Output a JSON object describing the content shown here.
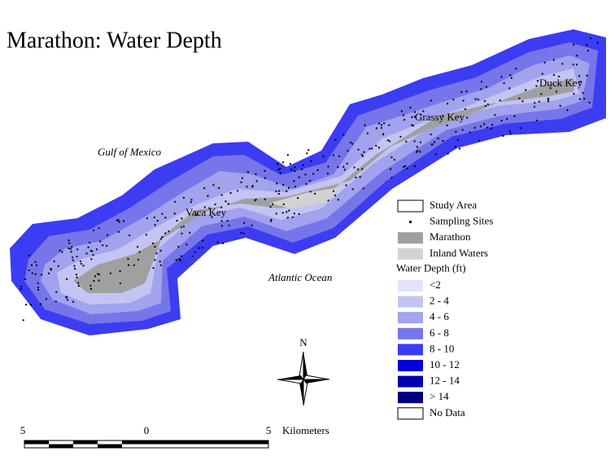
{
  "title": "Marathon:  Water Depth",
  "places": [
    {
      "label": "Gulf of Mexico",
      "italic": true
    },
    {
      "label": "Vaca Key",
      "italic": false
    },
    {
      "label": "Grassy Key",
      "italic": false
    },
    {
      "label": "Duck Key",
      "italic": false
    },
    {
      "label": "Atlantic Ocean",
      "italic": true
    }
  ],
  "legend": {
    "features": [
      {
        "label": "Study Area",
        "color": "#ffffff"
      },
      {
        "label": "Sampling Sites",
        "color": "#000000",
        "marker": "dot"
      },
      {
        "label": "Marathon",
        "color": "#a0a0a0"
      },
      {
        "label": "Inland Waters",
        "color": "#d2d2d2"
      }
    ],
    "depth_title": "Water Depth (ft)",
    "depth_classes": [
      {
        "label": "<2",
        "color": "#e2e2fa"
      },
      {
        "label": "2 - 4",
        "color": "#c4c4f4"
      },
      {
        "label": "4 - 6",
        "color": "#a2a2ee"
      },
      {
        "label": "6 - 8",
        "color": "#7676ea"
      },
      {
        "label": "8 - 10",
        "color": "#3c3cf2"
      },
      {
        "label": "10 - 12",
        "color": "#0000de"
      },
      {
        "label": "12 - 14",
        "color": "#0000b0"
      },
      {
        "label": "> 14",
        "color": "#000080"
      },
      {
        "label": "No Data",
        "color": "#ffffff"
      }
    ]
  },
  "north_label": "N",
  "scale_bar": {
    "labels": [
      "5",
      "0",
      "5"
    ],
    "unit": "Kilometers"
  }
}
